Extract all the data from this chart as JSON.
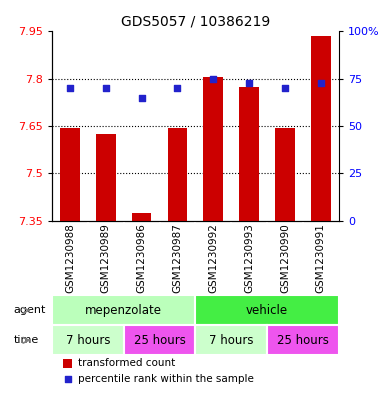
{
  "title": "GDS5057 / 10386219",
  "samples": [
    "GSM1230988",
    "GSM1230989",
    "GSM1230986",
    "GSM1230987",
    "GSM1230992",
    "GSM1230993",
    "GSM1230990",
    "GSM1230991"
  ],
  "bar_values": [
    7.645,
    7.625,
    7.375,
    7.645,
    7.805,
    7.775,
    7.645,
    7.935
  ],
  "bar_baseline": 7.35,
  "percentile_values": [
    70,
    70,
    65,
    70,
    75,
    73,
    70,
    73
  ],
  "ylim_left": [
    7.35,
    7.95
  ],
  "ylim_right": [
    0,
    100
  ],
  "yticks_left": [
    7.35,
    7.5,
    7.65,
    7.8,
    7.95
  ],
  "yticks_right": [
    0,
    25,
    50,
    75,
    100
  ],
  "ytick_labels_right": [
    "0",
    "25",
    "50",
    "75",
    "100%"
  ],
  "bar_color": "#cc0000",
  "square_color": "#2222cc",
  "agent_labels": [
    "mepenzolate",
    "vehicle"
  ],
  "agent_colors_left": [
    "#bbffbb",
    "#55ee55"
  ],
  "agent_colors_right": [
    "#55ee55",
    "#55ee55"
  ],
  "time_colors": [
    "#ddffd0",
    "#ee88ee",
    "#ddffd0",
    "#ee88ee"
  ],
  "time_labels": [
    "7 hours",
    "25 hours",
    "7 hours",
    "25 hours"
  ],
  "sample_bg_color": "#c8c8c8",
  "legend_red": "transformed count",
  "legend_blue": "percentile rank within the sample",
  "figsize": [
    3.85,
    3.93
  ],
  "dpi": 100,
  "left_label_color": "black",
  "grid_ticks": [
    7.5,
    7.65,
    7.8
  ]
}
